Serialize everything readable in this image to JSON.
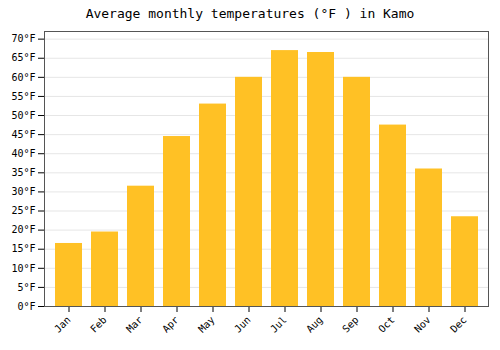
{
  "chart_data": {
    "type": "bar",
    "title": "Average monthly temperatures (°F ) in Kamo",
    "categories": [
      "Jan",
      "Feb",
      "Mar",
      "Apr",
      "May",
      "Jun",
      "Jul",
      "Aug",
      "Sep",
      "Oct",
      "Nov",
      "Dec"
    ],
    "values": [
      16.5,
      19.5,
      31.5,
      44.5,
      53.0,
      60.0,
      67.0,
      66.5,
      60.0,
      47.5,
      36.0,
      23.5
    ],
    "color": "#FFC125",
    "ylim": [
      0,
      72
    ],
    "yticks": [
      {
        "value": 0,
        "label": "0°F"
      },
      {
        "value": 5,
        "label": "5°F"
      },
      {
        "value": 10,
        "label": "10°F"
      },
      {
        "value": 15,
        "label": "15°F"
      },
      {
        "value": 20,
        "label": "20°F"
      },
      {
        "value": 25,
        "label": "25°F"
      },
      {
        "value": 30,
        "label": "30°F"
      },
      {
        "value": 35,
        "label": "35°F"
      },
      {
        "value": 40,
        "label": "40°F"
      },
      {
        "value": 45,
        "label": "45°F"
      },
      {
        "value": 50,
        "label": "50°F"
      },
      {
        "value": 55,
        "label": "55°F"
      },
      {
        "value": 60,
        "label": "60°F"
      },
      {
        "value": 65,
        "label": "65°F"
      },
      {
        "value": 70,
        "label": "70°F"
      }
    ],
    "grid": true
  }
}
